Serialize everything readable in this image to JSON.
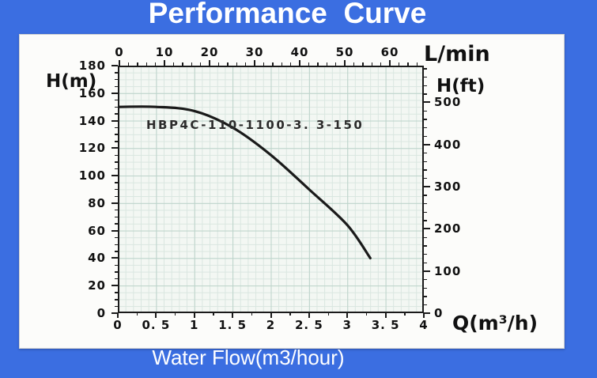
{
  "title": "Performance  Curve",
  "footer": "Water Flow(m3/hour)",
  "chart_data": {
    "type": "line",
    "title": "Performance Curve",
    "curve_label": "HBP4C-110-1100-3. 3-150",
    "series": [
      {
        "name": "HBP4C-110-1100-3.3-150",
        "points": [
          [
            0,
            150
          ],
          [
            0.5,
            150
          ],
          [
            1,
            147
          ],
          [
            1.5,
            135
          ],
          [
            2,
            115
          ],
          [
            2.5,
            90
          ],
          [
            3,
            64
          ],
          [
            3.3,
            40
          ]
        ]
      }
    ],
    "axes": {
      "bottom": {
        "label": "Q(m³/h)",
        "min": 0,
        "max": 4,
        "major_ticks": [
          0,
          0.5,
          1,
          1.5,
          2,
          2.5,
          3,
          3.5,
          4
        ],
        "tick_labels": [
          "0",
          "0. 5",
          "1",
          "1. 5",
          "2",
          "2. 5",
          "3",
          "3. 5",
          "4"
        ],
        "minor_step": 0.25
      },
      "top": {
        "label": "L/min",
        "min": 0,
        "max": 67.5,
        "major_ticks": [
          0,
          10,
          20,
          30,
          40,
          50,
          60
        ],
        "minor_step": 2
      },
      "left": {
        "label": "H(m)",
        "min": 0,
        "max": 180,
        "major_ticks": [
          180,
          160,
          140,
          120,
          100,
          80,
          60,
          40,
          20,
          0
        ],
        "minor_step": 5
      },
      "right": {
        "label": "H(ft)",
        "min": 0,
        "max": 587,
        "major_ticks": [
          500,
          400,
          300,
          200,
          100,
          0
        ],
        "minor_step": 20
      }
    },
    "grid": true,
    "legend": "none",
    "colors": {
      "background": "#3b6ee1",
      "panel": "#fcfcfa",
      "plot_bg": "#f3f7f3",
      "grid_minor": "#d9e6e0",
      "grid_major": "#bcd3ca",
      "curve": "#1a1a1a",
      "axis_text": "#111111",
      "title_text": "#ffffff"
    }
  }
}
